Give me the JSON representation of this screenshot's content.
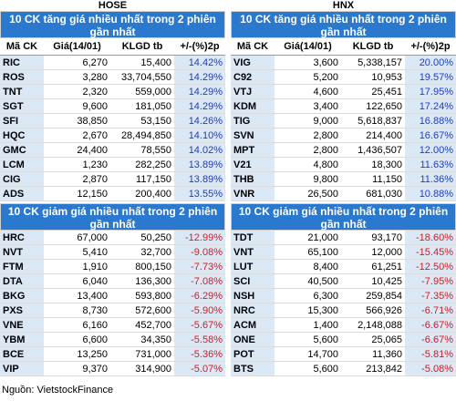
{
  "exchanges": {
    "hose": {
      "name": "HOSE",
      "up_title": "10 CK tăng giá nhiều nhất trong 2 phiên gần nhất",
      "down_title": "10 CK giảm giá nhiều nhất trong 2 phiên gần nhất",
      "headers": [
        "Mã CK",
        "Giá(14/01)",
        "KLGD tb",
        "+/-(%)2p"
      ],
      "up": [
        [
          "RIC",
          "6,270",
          "15,400",
          "14.42%"
        ],
        [
          "ROS",
          "3,280",
          "33,704,550",
          "14.29%"
        ],
        [
          "TNT",
          "2,320",
          "559,000",
          "14.29%"
        ],
        [
          "SGT",
          "9,600",
          "181,050",
          "14.29%"
        ],
        [
          "SFI",
          "38,850",
          "53,150",
          "14.26%"
        ],
        [
          "HQC",
          "2,670",
          "28,494,850",
          "14.10%"
        ],
        [
          "GMC",
          "24,400",
          "78,550",
          "14.02%"
        ],
        [
          "LCM",
          "1,230",
          "282,250",
          "13.89%"
        ],
        [
          "CIG",
          "2,870",
          "117,150",
          "13.89%"
        ],
        [
          "ADS",
          "12,150",
          "200,400",
          "13.55%"
        ]
      ],
      "down": [
        [
          "HRC",
          "67,000",
          "50,250",
          "-12.99%"
        ],
        [
          "NVT",
          "5,410",
          "32,700",
          "-9.08%"
        ],
        [
          "FTM",
          "1,910",
          "800,150",
          "-7.73%"
        ],
        [
          "DTA",
          "6,040",
          "136,300",
          "-7.08%"
        ],
        [
          "BKG",
          "13,400",
          "593,800",
          "-6.29%"
        ],
        [
          "PXS",
          "8,730",
          "572,600",
          "-5.90%"
        ],
        [
          "VNE",
          "6,160",
          "452,700",
          "-5.67%"
        ],
        [
          "YBM",
          "6,600",
          "34,350",
          "-5.58%"
        ],
        [
          "BCE",
          "13,250",
          "731,000",
          "-5.36%"
        ],
        [
          "VIP",
          "9,370",
          "314,900",
          "-5.07%"
        ]
      ]
    },
    "hnx": {
      "name": "HNX",
      "up_title": "10 CK tăng giá nhiều nhất trong 2 phiên gần nhất",
      "down_title": "10 CK giảm giá nhiều nhất trong 2 phiên gần nhất",
      "headers": [
        "Mã CK",
        "Giá(14/01)",
        "KLGD tb",
        "+/-(%)2p"
      ],
      "up": [
        [
          "VIG",
          "3,600",
          "5,338,157",
          "20.00%"
        ],
        [
          "C92",
          "5,200",
          "10,953",
          "19.57%"
        ],
        [
          "VTJ",
          "4,600",
          "25,451",
          "17.95%"
        ],
        [
          "KDM",
          "3,400",
          "122,650",
          "17.24%"
        ],
        [
          "TIG",
          "9,000",
          "5,618,837",
          "16.88%"
        ],
        [
          "SVN",
          "2,800",
          "214,400",
          "16.67%"
        ],
        [
          "MPT",
          "2,800",
          "1,436,507",
          "12.00%"
        ],
        [
          "V21",
          "4,800",
          "18,300",
          "11.63%"
        ],
        [
          "THB",
          "9,800",
          "11,150",
          "11.36%"
        ],
        [
          "VNR",
          "26,500",
          "681,030",
          "10.88%"
        ]
      ],
      "down": [
        [
          "TDT",
          "21,000",
          "93,170",
          "-18.60%"
        ],
        [
          "VNT",
          "65,100",
          "12,000",
          "-15.45%"
        ],
        [
          "LUT",
          "8,400",
          "61,251",
          "-12.50%"
        ],
        [
          "SCI",
          "40,500",
          "10,425",
          "-7.95%"
        ],
        [
          "NSH",
          "6,300",
          "259,854",
          "-7.35%"
        ],
        [
          "NRC",
          "15,300",
          "566,926",
          "-6.71%"
        ],
        [
          "ACM",
          "1,400",
          "2,148,088",
          "-6.67%"
        ],
        [
          "ONE",
          "5,600",
          "25,065",
          "-6.67%"
        ],
        [
          "POT",
          "14,700",
          "11,360",
          "-5.81%"
        ],
        [
          "BTS",
          "5,600",
          "213,842",
          "-5.08%"
        ]
      ]
    }
  },
  "source": "Nguồn: VietstockFinance",
  "colors": {
    "banner": "#2b78cf",
    "up": "#1a3bd8",
    "down": "#e0161c",
    "shade": "#dbe8f6"
  }
}
